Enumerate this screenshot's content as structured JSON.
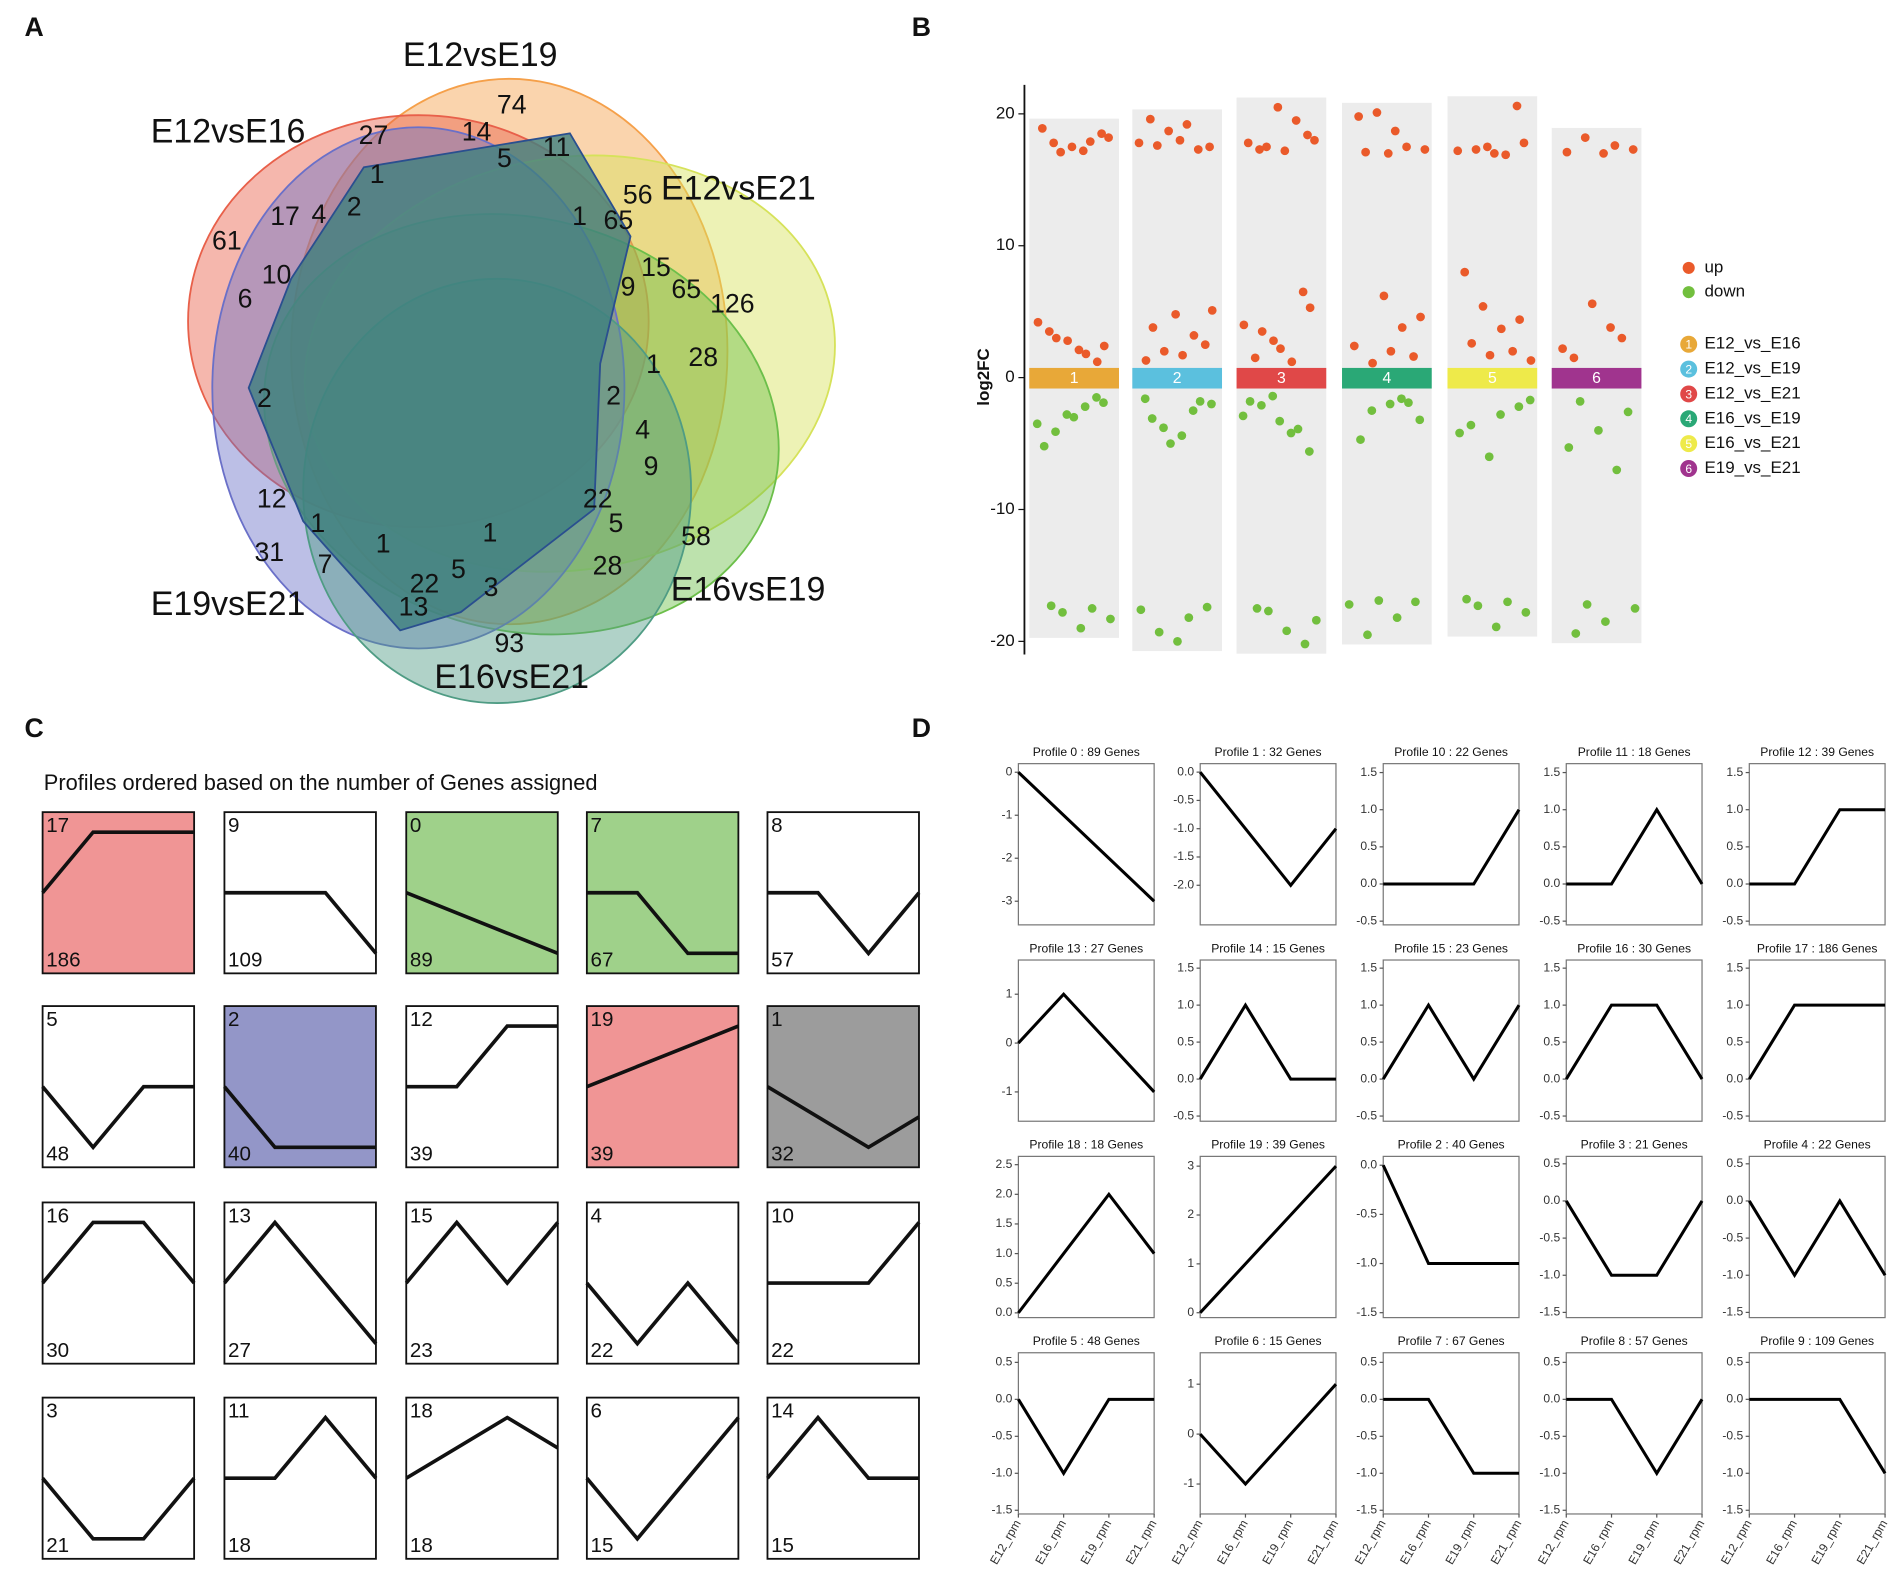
{
  "chart_data": [
    {
      "type": "venn",
      "panel_label": "A",
      "sets": [
        {
          "name": "E12vsE19",
          "color": "#f5a04a"
        },
        {
          "name": "E12vsE16",
          "color": "#e8604a"
        },
        {
          "name": "E12vsE21",
          "color": "#d6e25a"
        },
        {
          "name": "E16vsE19",
          "color": "#6cbf4a"
        },
        {
          "name": "E19vsE21",
          "color": "#6a70c8"
        },
        {
          "name": "E16vsE21",
          "color": "#4f9c84"
        }
      ],
      "values": [
        74,
        27,
        14,
        5,
        11,
        1,
        56,
        17,
        4,
        2,
        1,
        65,
        61,
        10,
        15,
        9,
        65,
        126,
        6,
        28,
        1,
        2,
        2,
        4,
        9,
        12,
        22,
        5,
        1,
        1,
        1,
        58,
        31,
        7,
        28,
        5,
        22,
        3,
        13,
        93
      ]
    },
    {
      "type": "strip",
      "panel_label": "B",
      "ylabel": "log2FC",
      "ylim": [
        -21,
        22.2
      ],
      "yticks": [
        -20,
        -10,
        0,
        10,
        20
      ],
      "classes": [
        {
          "name": "up",
          "color": "#ea5a2a"
        },
        {
          "name": "down",
          "color": "#72bf3e"
        }
      ],
      "groups": [
        {
          "id": 1,
          "name": "E12_vs_E16",
          "color": "#e8a838",
          "up": [
            17.2,
            17.8,
            18.5,
            17.5,
            18.9,
            17.9,
            17.1,
            18.2,
            2.1,
            3.5,
            1.2,
            2.8,
            4.2,
            1.8,
            3.0,
            2.4
          ],
          "down": [
            -1.5,
            -2.8,
            -3.5,
            -2.2,
            -4.1,
            -1.9,
            -3.0,
            -5.2,
            -17.5,
            -17.8,
            -18.3,
            -19.0,
            -17.3
          ]
        },
        {
          "id": 2,
          "name": "E12_vs_E19",
          "color": "#5bc0de",
          "up": [
            17.5,
            18.0,
            19.6,
            17.3,
            18.7,
            17.8,
            19.2,
            17.6,
            2.5,
            4.8,
            1.3,
            3.2,
            2.0,
            5.1,
            1.7,
            3.8
          ],
          "down": [
            -1.6,
            -2.5,
            -3.8,
            -2.0,
            -4.4,
            -3.1,
            -1.8,
            -5.0,
            -17.6,
            -18.2,
            -19.3,
            -17.4,
            -20.0
          ]
        },
        {
          "id": 3,
          "name": "E12_vs_E21",
          "color": "#e04848",
          "up": [
            17.3,
            18.4,
            20.5,
            17.8,
            19.5,
            17.5,
            18.0,
            17.2,
            1.5,
            6.5,
            2.8,
            4.0,
            1.2,
            3.5,
            5.3,
            2.2
          ],
          "down": [
            -1.4,
            -2.9,
            -4.2,
            -2.1,
            -5.6,
            -3.3,
            -1.8,
            -3.9,
            -17.7,
            -18.4,
            -19.2,
            -17.5,
            -20.2
          ]
        },
        {
          "id": 4,
          "name": "E16_vs_E19",
          "color": "#2aa876",
          "up": [
            17.0,
            19.8,
            17.5,
            20.1,
            17.3,
            18.7,
            17.1,
            1.6,
            6.2,
            2.4,
            3.8,
            1.1,
            4.6,
            2.0
          ],
          "down": [
            -1.6,
            -2.5,
            -3.2,
            -2.0,
            -4.7,
            -1.9,
            -16.9,
            -17.2,
            -18.2,
            -19.5,
            -17.0
          ]
        },
        {
          "id": 5,
          "name": "E16_vs_E21",
          "color": "#eeea4a",
          "up": [
            20.6,
            17.5,
            17.2,
            16.9,
            17.3,
            17.8,
            17.0,
            8.0,
            2.0,
            5.4,
            1.3,
            3.7,
            2.6,
            4.4,
            1.7
          ],
          "down": [
            -1.7,
            -2.8,
            -3.6,
            -2.2,
            -6.0,
            -4.2,
            -17.0,
            -17.3,
            -17.8,
            -18.9,
            -16.8
          ]
        },
        {
          "id": 6,
          "name": "E19_vs_E21",
          "color": "#a0348e",
          "up": [
            17.1,
            17.6,
            18.2,
            17.3,
            17.0,
            1.5,
            3.0,
            5.6,
            2.2,
            3.8
          ],
          "down": [
            -1.8,
            -2.6,
            -4.0,
            -5.3,
            -7.0,
            -17.2,
            -17.5,
            -18.5,
            -19.4
          ]
        }
      ]
    },
    {
      "type": "profile_grid",
      "panel_label": "C",
      "title": "Profiles ordered based on the number of Genes assigned",
      "profiles": [
        {
          "id": 17,
          "count": 186,
          "color": "#f09595",
          "values": [
            0,
            1,
            1,
            1
          ]
        },
        {
          "id": 9,
          "count": 109,
          "color": "#ffffff",
          "values": [
            0,
            0,
            0,
            -1
          ]
        },
        {
          "id": 0,
          "count": 89,
          "color": "#9fd18a",
          "values": [
            0,
            -1,
            -2,
            -3
          ]
        },
        {
          "id": 7,
          "count": 67,
          "color": "#9fd18a",
          "values": [
            0,
            0,
            -1,
            -1
          ]
        },
        {
          "id": 8,
          "count": 57,
          "color": "#ffffff",
          "values": [
            0,
            0,
            -1,
            0
          ]
        },
        {
          "id": 5,
          "count": 48,
          "color": "#ffffff",
          "values": [
            0,
            -1,
            0,
            0
          ]
        },
        {
          "id": 2,
          "count": 40,
          "color": "#9396c8",
          "values": [
            0,
            -1,
            -1,
            -1
          ]
        },
        {
          "id": 12,
          "count": 39,
          "color": "#ffffff",
          "values": [
            0,
            0,
            1,
            1
          ]
        },
        {
          "id": 19,
          "count": 39,
          "color": "#f09595",
          "values": [
            0,
            1,
            2,
            3
          ]
        },
        {
          "id": 1,
          "count": 32,
          "color": "#9c9c9c",
          "values": [
            0,
            -1,
            -2,
            -1
          ]
        },
        {
          "id": 16,
          "count": 30,
          "color": "#ffffff",
          "values": [
            0,
            1,
            1,
            0
          ]
        },
        {
          "id": 13,
          "count": 27,
          "color": "#ffffff",
          "values": [
            0,
            1,
            0,
            -1
          ]
        },
        {
          "id": 15,
          "count": 23,
          "color": "#ffffff",
          "values": [
            0,
            1,
            0,
            1
          ]
        },
        {
          "id": 4,
          "count": 22,
          "color": "#ffffff",
          "values": [
            0,
            -1,
            0,
            -1
          ]
        },
        {
          "id": 10,
          "count": 22,
          "color": "#ffffff",
          "values": [
            0,
            0,
            0,
            1
          ]
        },
        {
          "id": 3,
          "count": 21,
          "color": "#ffffff",
          "values": [
            0,
            -1,
            -1,
            0
          ]
        },
        {
          "id": 11,
          "count": 18,
          "color": "#ffffff",
          "values": [
            0,
            0,
            1,
            0
          ]
        },
        {
          "id": 18,
          "count": 18,
          "color": "#ffffff",
          "values": [
            0,
            1,
            2,
            1
          ]
        },
        {
          "id": 6,
          "count": 15,
          "color": "#ffffff",
          "values": [
            0,
            -1,
            0,
            1
          ]
        },
        {
          "id": 14,
          "count": 15,
          "color": "#ffffff",
          "values": [
            0,
            1,
            0,
            0
          ]
        }
      ]
    },
    {
      "type": "line_grid",
      "panel_label": "D",
      "x": [
        "E12_rpm",
        "E16_rpm",
        "E19_rpm",
        "E21_rpm"
      ],
      "plots": [
        {
          "title": "Profile 0 : 89 Genes",
          "ylim": [
            -3.55,
            0.2
          ],
          "yticks": [
            0,
            -1,
            -2,
            -3
          ],
          "values": [
            0,
            -1,
            -2,
            -3
          ]
        },
        {
          "title": "Profile 1 : 32 Genes",
          "ylim": [
            -2.7,
            0.15
          ],
          "yticks": [
            {
              "value": 0,
              "label": "0.0"
            },
            -0.5,
            {
              "value": -1,
              "label": "-1.0"
            },
            -1.5,
            {
              "value": -2,
              "label": "-2.0"
            }
          ],
          "values": [
            0,
            -1,
            -2,
            -1
          ]
        },
        {
          "title": "Profile 10 : 22 Genes",
          "ylim": [
            -0.55,
            1.62
          ],
          "yticks": [
            -0.5,
            {
              "value": 0,
              "label": "0.0"
            },
            0.5,
            {
              "value": 1,
              "label": "1.0"
            },
            1.5
          ],
          "values": [
            0,
            0,
            0,
            1
          ]
        },
        {
          "title": "Profile 11 : 18 Genes",
          "ylim": [
            -0.55,
            1.62
          ],
          "yticks": [
            -0.5,
            {
              "value": 0,
              "label": "0.0"
            },
            0.5,
            {
              "value": 1,
              "label": "1.0"
            },
            1.5
          ],
          "values": [
            0,
            0,
            1,
            0
          ]
        },
        {
          "title": "Profile 12 : 39 Genes",
          "ylim": [
            -0.55,
            1.62
          ],
          "yticks": [
            -0.5,
            {
              "value": 0,
              "label": "0.0"
            },
            0.5,
            {
              "value": 1,
              "label": "1.0"
            },
            1.5
          ],
          "values": [
            0,
            0,
            1,
            1
          ]
        },
        {
          "title": "Profile 13 : 27 Genes",
          "ylim": [
            -1.6,
            1.7
          ],
          "yticks": [
            -1,
            0,
            1
          ],
          "values": [
            0,
            1,
            0,
            -1
          ]
        },
        {
          "title": "Profile 14 : 15 Genes",
          "ylim": [
            -0.57,
            1.61
          ],
          "yticks": [
            -0.5,
            {
              "value": 0,
              "label": "0.0"
            },
            0.5,
            {
              "value": 1,
              "label": "1.0"
            },
            1.5
          ],
          "values": [
            0,
            1,
            0,
            0
          ]
        },
        {
          "title": "Profile 15 : 23 Genes",
          "ylim": [
            -0.57,
            1.61
          ],
          "yticks": [
            -0.5,
            {
              "value": 0,
              "label": "0.0"
            },
            0.5,
            {
              "value": 1,
              "label": "1.0"
            },
            1.5
          ],
          "values": [
            0,
            1,
            0,
            1
          ]
        },
        {
          "title": "Profile 16 : 30 Genes",
          "ylim": [
            -0.57,
            1.61
          ],
          "yticks": [
            -0.5,
            {
              "value": 0,
              "label": "0.0"
            },
            0.5,
            {
              "value": 1,
              "label": "1.0"
            },
            1.5
          ],
          "values": [
            0,
            1,
            1,
            0
          ]
        },
        {
          "title": "Profile 17 : 186 Genes",
          "ylim": [
            -0.57,
            1.61
          ],
          "yticks": [
            -0.5,
            {
              "value": 0,
              "label": "0.0"
            },
            0.5,
            {
              "value": 1,
              "label": "1.0"
            },
            1.5
          ],
          "values": [
            0,
            1,
            1,
            1
          ]
        },
        {
          "title": "Profile 18 : 18 Genes",
          "ylim": [
            -0.08,
            2.64
          ],
          "yticks": [
            {
              "value": 0,
              "label": "0.0"
            },
            0.5,
            {
              "value": 1,
              "label": "1.0"
            },
            1.5,
            {
              "value": 2,
              "label": "2.0"
            },
            2.5
          ],
          "values": [
            0,
            1,
            2,
            1
          ]
        },
        {
          "title": "Profile 19 : 39 Genes",
          "ylim": [
            -0.1,
            3.2
          ],
          "yticks": [
            0,
            1,
            2,
            3
          ],
          "values": [
            0,
            1,
            2,
            3
          ]
        },
        {
          "title": "Profile 2 : 40 Genes",
          "ylim": [
            -1.55,
            0.09
          ],
          "yticks": [
            {
              "value": 0,
              "label": "0.0"
            },
            -0.5,
            {
              "value": -1,
              "label": "-1.0"
            },
            -1.5
          ],
          "values": [
            0,
            -1,
            -1,
            -1
          ]
        },
        {
          "title": "Profile 3 : 21 Genes",
          "ylim": [
            -1.57,
            0.6
          ],
          "yticks": [
            0.5,
            {
              "value": 0,
              "label": "0.0"
            },
            -0.5,
            {
              "value": -1,
              "label": "-1.0"
            },
            -1.5
          ],
          "values": [
            0,
            -1,
            -1,
            0
          ]
        },
        {
          "title": "Profile 4 : 22 Genes",
          "ylim": [
            -1.57,
            0.6
          ],
          "yticks": [
            0.5,
            {
              "value": 0,
              "label": "0.0"
            },
            -0.5,
            {
              "value": -1,
              "label": "-1.0"
            },
            -1.5
          ],
          "values": [
            0,
            -1,
            0,
            -1
          ]
        },
        {
          "title": "Profile 5 : 48 Genes",
          "ylim": [
            -1.55,
            0.63
          ],
          "yticks": [
            0.5,
            {
              "value": 0,
              "label": "0.0"
            },
            -0.5,
            {
              "value": -1,
              "label": "-1.0"
            },
            -1.5
          ],
          "values": [
            0,
            -1,
            0,
            0
          ]
        },
        {
          "title": "Profile 6 : 15 Genes",
          "ylim": [
            -1.6,
            1.63
          ],
          "yticks": [
            1,
            0,
            -1
          ],
          "values": [
            0,
            -1,
            0,
            1
          ]
        },
        {
          "title": "Profile 7 : 67 Genes",
          "ylim": [
            -1.55,
            0.63
          ],
          "yticks": [
            0.5,
            {
              "value": 0,
              "label": "0.0"
            },
            -0.5,
            {
              "value": -1,
              "label": "-1.0"
            },
            -1.5
          ],
          "values": [
            0,
            0,
            -1,
            -1
          ]
        },
        {
          "title": "Profile 8 : 57 Genes",
          "ylim": [
            -1.55,
            0.63
          ],
          "yticks": [
            0.5,
            {
              "value": 0,
              "label": "0.0"
            },
            -0.5,
            {
              "value": -1,
              "label": "-1.0"
            },
            -1.5
          ],
          "values": [
            0,
            0,
            -1,
            0
          ]
        },
        {
          "title": "Profile 9 : 109 Genes",
          "ylim": [
            -1.55,
            0.63
          ],
          "yticks": [
            0.5,
            {
              "value": 0,
              "label": "0.0"
            },
            -0.5,
            {
              "value": -1,
              "label": "-1.0"
            },
            -1.5
          ],
          "values": [
            0,
            0,
            0,
            -1
          ]
        }
      ]
    }
  ]
}
